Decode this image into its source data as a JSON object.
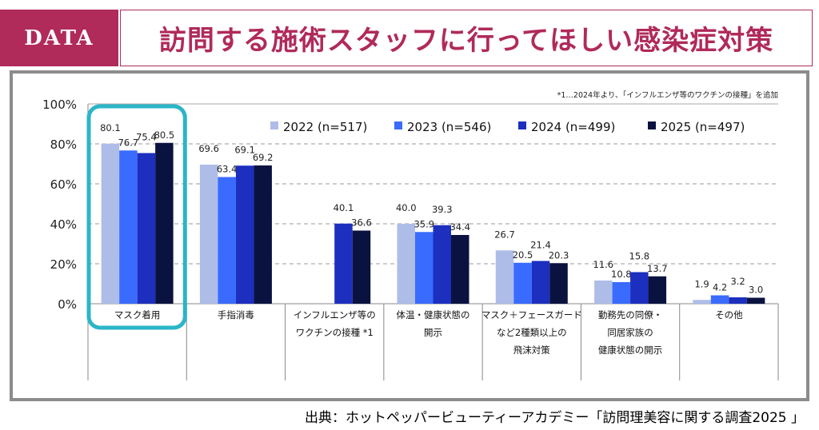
{
  "header": {
    "badge": "DATA",
    "title": "訪問する施術スタッフに行ってほしい感染症対策"
  },
  "colors": {
    "brand": "#b02a5a",
    "highlight": "#2bb5c8",
    "frame": "#8c8c8c"
  },
  "chart_data": {
    "type": "bar",
    "footnote": "*1…2024年より、「インフルエンザ等のワクチンの接種」を追加",
    "categories": [
      [
        "マスク着用"
      ],
      [
        "手指消毒"
      ],
      [
        "インフルエンザ等の",
        "ワクチンの接種 *1"
      ],
      [
        "体温・健康状態の",
        "開示"
      ],
      [
        "マスク＋フェースガード",
        "など2種類以上の",
        "飛沫対策"
      ],
      [
        "勤務先の同僚・",
        "同居家族の",
        "健康状態の開示"
      ],
      [
        "その他"
      ]
    ],
    "series": [
      {
        "name": "2022 (n=517)",
        "color": "#aebde8",
        "values": [
          80.1,
          69.6,
          null,
          40.0,
          26.7,
          11.6,
          1.9
        ]
      },
      {
        "name": "2023 (n=546)",
        "color": "#3a6bff",
        "values": [
          76.7,
          63.4,
          null,
          35.9,
          20.5,
          10.8,
          4.2
        ]
      },
      {
        "name": "2024 (n=499)",
        "color": "#1c2fbf",
        "values": [
          75.4,
          69.1,
          40.1,
          39.3,
          21.4,
          15.8,
          3.2
        ]
      },
      {
        "name": "2025 (n=497)",
        "color": "#0a1240",
        "values": [
          80.5,
          69.2,
          36.6,
          34.4,
          20.3,
          13.7,
          3.0
        ]
      }
    ],
    "yticks": [
      "0%",
      "20%",
      "40%",
      "60%",
      "80%",
      "100%"
    ],
    "ylim": [
      0,
      100
    ],
    "grid": true,
    "legend": "top-right",
    "highlighted_category": "マスク着用"
  },
  "source": "出典：ホットペッパービューティーアカデミー「訪問理美容に関する調査2025 」"
}
